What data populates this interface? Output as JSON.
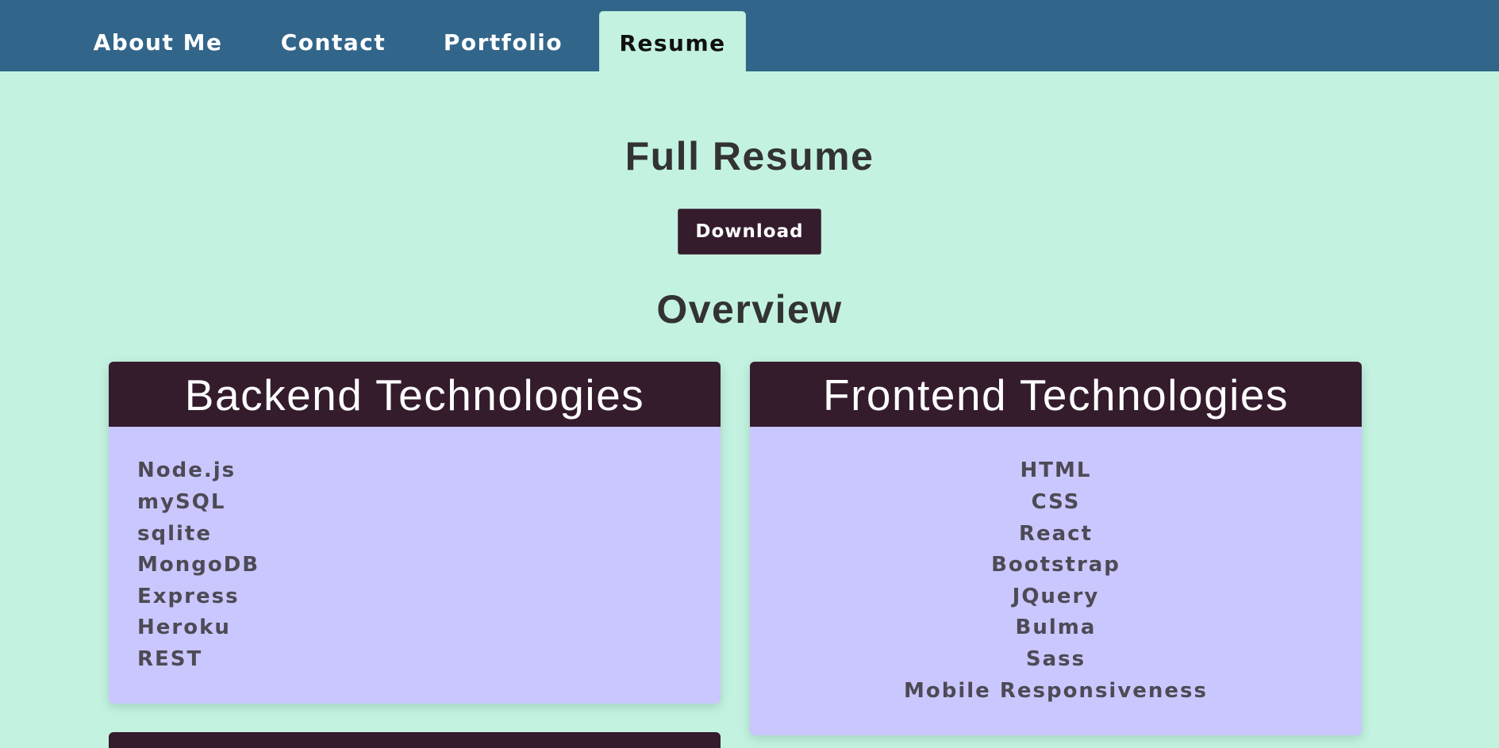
{
  "nav": {
    "tabs": [
      {
        "label": "About Me"
      },
      {
        "label": "Contact"
      },
      {
        "label": "Portfolio"
      },
      {
        "label": "Resume",
        "active": true
      }
    ]
  },
  "main": {
    "title": "Full Resume",
    "download_label": "Download",
    "overview_title": "Overview"
  },
  "backend": {
    "title": "Backend Technologies",
    "items": [
      "Node.js",
      "mySQL",
      "sqlite",
      "MongoDB",
      "Express",
      "Heroku",
      "REST"
    ]
  },
  "frontend": {
    "title": "Frontend Technologies",
    "items": [
      "HTML",
      "CSS",
      "React",
      "Bootstrap",
      "JQuery",
      "Bulma",
      "Sass",
      "Mobile Responsiveness"
    ]
  },
  "colors": {
    "nav_background": "#32658a",
    "page_background": "#c3f3e0",
    "card_header": "#341c2d",
    "card_body": "#c9c7fe",
    "text_dark": "#333333"
  }
}
